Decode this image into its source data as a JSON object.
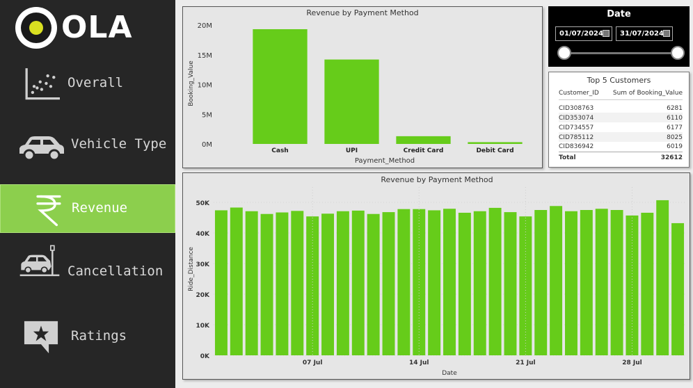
{
  "logo": {
    "text": "OLA"
  },
  "nav": {
    "items": [
      {
        "label": "Overall",
        "icon": "scatter-chart-icon"
      },
      {
        "label": "Vehicle Type",
        "icon": "car-icon"
      },
      {
        "label": "Revenue",
        "icon": "rupee-icon",
        "active": true
      },
      {
        "label": "Cancellation",
        "icon": "car-crash-icon"
      },
      {
        "label": "Ratings",
        "icon": "star-chat-icon"
      }
    ]
  },
  "colors": {
    "sidebar": "#262626",
    "active": "#8ccf4d",
    "bar": "#66cc1a"
  },
  "date_slicer": {
    "title": "Date",
    "start": "01/07/2024",
    "end": "31/07/2024"
  },
  "top_customers": {
    "title": "Top 5 Customers",
    "columns": [
      "Customer_ID",
      "Sum of Booking_Value"
    ],
    "rows": [
      [
        "CID308763",
        "6281"
      ],
      [
        "CID353074",
        "6110"
      ],
      [
        "CID734557",
        "6177"
      ],
      [
        "CID785112",
        "8025"
      ],
      [
        "CID836942",
        "6019"
      ]
    ],
    "total_label": "Total",
    "total_value": "32612"
  },
  "chart_data": [
    {
      "type": "bar",
      "title": "Revenue by Payment Method",
      "xlabel": "Payment_Method",
      "ylabel": "Booking_Value",
      "categories": [
        "Cash",
        "UPI",
        "Credit Card",
        "Debit Card"
      ],
      "values": [
        19300000,
        14200000,
        1300000,
        300000
      ],
      "ylim": [
        0,
        20000000
      ],
      "yticks": [
        0,
        5000000,
        10000000,
        15000000,
        20000000
      ],
      "ytick_labels": [
        "0M",
        "5M",
        "10M",
        "15M",
        "20M"
      ],
      "color": "#66cc1a"
    },
    {
      "type": "bar",
      "title": "Revenue by Payment Method",
      "xlabel": "Date",
      "ylabel": "Ride_Distance",
      "x": [
        "2024-07-01",
        "2024-07-02",
        "2024-07-03",
        "2024-07-04",
        "2024-07-05",
        "2024-07-06",
        "2024-07-07",
        "2024-07-08",
        "2024-07-09",
        "2024-07-10",
        "2024-07-11",
        "2024-07-12",
        "2024-07-13",
        "2024-07-14",
        "2024-07-15",
        "2024-07-16",
        "2024-07-17",
        "2024-07-18",
        "2024-07-19",
        "2024-07-20",
        "2024-07-21",
        "2024-07-22",
        "2024-07-23",
        "2024-07-24",
        "2024-07-25",
        "2024-07-26",
        "2024-07-27",
        "2024-07-28",
        "2024-07-29",
        "2024-07-30",
        "2024-07-31"
      ],
      "values": [
        47400,
        48300,
        47100,
        46200,
        46700,
        47200,
        45400,
        46300,
        47100,
        47300,
        46200,
        46800,
        47800,
        47800,
        47400,
        47900,
        46600,
        47100,
        48200,
        46800,
        45400,
        47500,
        48800,
        47100,
        47500,
        47900,
        47500,
        45700,
        46600,
        50700,
        43200
      ],
      "xtick_labels": [
        "07 Jul",
        "14 Jul",
        "21 Jul",
        "28 Jul"
      ],
      "ylim": [
        0,
        55000
      ],
      "yticks": [
        0,
        10000,
        20000,
        30000,
        40000,
        50000
      ],
      "ytick_labels": [
        "0K",
        "10K",
        "20K",
        "30K",
        "40K",
        "50K"
      ],
      "color": "#66cc1a"
    }
  ]
}
